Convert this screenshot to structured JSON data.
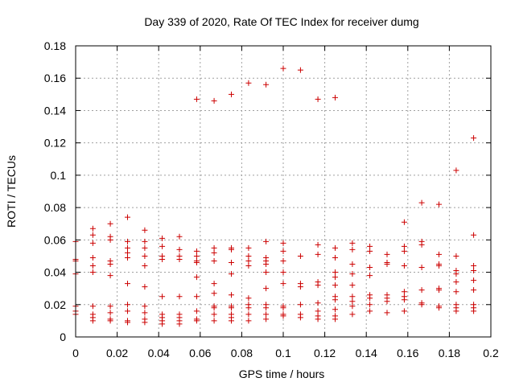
{
  "chart_data": {
    "type": "scatter",
    "title": "Day 339 of 2020, Rate Of TEC Index for receiver dumg",
    "xlabel": "GPS time / hours",
    "ylabel": "ROTI / TECUs",
    "xlim": [
      0,
      0.2
    ],
    "ylim": [
      0,
      0.18
    ],
    "xticks": [
      0,
      0.02,
      0.04,
      0.06,
      0.08,
      0.1,
      0.12,
      0.14,
      0.16,
      0.18,
      0.2
    ],
    "xtick_labels": [
      "0",
      "0.02",
      "0.04",
      "0.06",
      "0.08",
      "0.1",
      "0.12",
      "0.14",
      "0.16",
      "0.18",
      "0.2"
    ],
    "yticks": [
      0,
      0.02,
      0.04,
      0.06,
      0.08,
      0.1,
      0.12,
      0.14,
      0.16,
      0.18
    ],
    "ytick_labels": [
      "0",
      "0.02",
      "0.04",
      "0.06",
      "0.08",
      "0.1",
      "0.12",
      "0.14",
      "0.16",
      "0.18"
    ],
    "grid": true,
    "marker": "+",
    "color": "#cc0000",
    "series": [
      {
        "name": "ROTI",
        "points": [
          [
            0.0,
            0.059
          ],
          [
            0.0,
            0.048
          ],
          [
            0.0,
            0.047
          ],
          [
            0.0,
            0.039
          ],
          [
            0.0,
            0.019
          ],
          [
            0.0,
            0.016
          ],
          [
            0.0,
            0.014
          ],
          [
            0.0083,
            0.067
          ],
          [
            0.0083,
            0.063
          ],
          [
            0.0083,
            0.058
          ],
          [
            0.0083,
            0.049
          ],
          [
            0.0083,
            0.044
          ],
          [
            0.0083,
            0.04
          ],
          [
            0.0083,
            0.019
          ],
          [
            0.0083,
            0.014
          ],
          [
            0.0083,
            0.012
          ],
          [
            0.0083,
            0.01
          ],
          [
            0.0167,
            0.07
          ],
          [
            0.0167,
            0.062
          ],
          [
            0.0167,
            0.06
          ],
          [
            0.0167,
            0.047
          ],
          [
            0.0167,
            0.045
          ],
          [
            0.0167,
            0.038
          ],
          [
            0.0167,
            0.019
          ],
          [
            0.0167,
            0.015
          ],
          [
            0.0167,
            0.011
          ],
          [
            0.0167,
            0.01
          ],
          [
            0.025,
            0.074
          ],
          [
            0.025,
            0.059
          ],
          [
            0.025,
            0.055
          ],
          [
            0.025,
            0.052
          ],
          [
            0.025,
            0.049
          ],
          [
            0.025,
            0.033
          ],
          [
            0.025,
            0.02
          ],
          [
            0.025,
            0.016
          ],
          [
            0.025,
            0.01
          ],
          [
            0.025,
            0.009
          ],
          [
            0.0333,
            0.066
          ],
          [
            0.0333,
            0.059
          ],
          [
            0.0333,
            0.055
          ],
          [
            0.0333,
            0.05
          ],
          [
            0.0333,
            0.044
          ],
          [
            0.0333,
            0.031
          ],
          [
            0.0333,
            0.019
          ],
          [
            0.0333,
            0.015
          ],
          [
            0.0333,
            0.011
          ],
          [
            0.0333,
            0.009
          ],
          [
            0.0417,
            0.061
          ],
          [
            0.0417,
            0.056
          ],
          [
            0.0417,
            0.05
          ],
          [
            0.0417,
            0.048
          ],
          [
            0.0417,
            0.025
          ],
          [
            0.0417,
            0.014
          ],
          [
            0.0417,
            0.012
          ],
          [
            0.0417,
            0.01
          ],
          [
            0.0417,
            0.008
          ],
          [
            0.05,
            0.062
          ],
          [
            0.05,
            0.054
          ],
          [
            0.05,
            0.05
          ],
          [
            0.05,
            0.048
          ],
          [
            0.05,
            0.025
          ],
          [
            0.05,
            0.014
          ],
          [
            0.05,
            0.012
          ],
          [
            0.05,
            0.01
          ],
          [
            0.05,
            0.008
          ],
          [
            0.0583,
            0.147
          ],
          [
            0.0583,
            0.053
          ],
          [
            0.0583,
            0.05
          ],
          [
            0.0583,
            0.047
          ],
          [
            0.0583,
            0.046
          ],
          [
            0.0583,
            0.037
          ],
          [
            0.0583,
            0.025
          ],
          [
            0.0583,
            0.016
          ],
          [
            0.0583,
            0.011
          ],
          [
            0.0583,
            0.01
          ],
          [
            0.0667,
            0.146
          ],
          [
            0.0667,
            0.055
          ],
          [
            0.0667,
            0.052
          ],
          [
            0.0667,
            0.047
          ],
          [
            0.0667,
            0.033
          ],
          [
            0.0667,
            0.027
          ],
          [
            0.0667,
            0.019
          ],
          [
            0.0667,
            0.018
          ],
          [
            0.0667,
            0.014
          ],
          [
            0.0667,
            0.01
          ],
          [
            0.075,
            0.15
          ],
          [
            0.075,
            0.055
          ],
          [
            0.075,
            0.054
          ],
          [
            0.075,
            0.046
          ],
          [
            0.075,
            0.039
          ],
          [
            0.075,
            0.026
          ],
          [
            0.075,
            0.019
          ],
          [
            0.075,
            0.018
          ],
          [
            0.075,
            0.014
          ],
          [
            0.075,
            0.012
          ],
          [
            0.075,
            0.01
          ],
          [
            0.0833,
            0.157
          ],
          [
            0.0833,
            0.055
          ],
          [
            0.0833,
            0.05
          ],
          [
            0.0833,
            0.047
          ],
          [
            0.0833,
            0.044
          ],
          [
            0.0833,
            0.024
          ],
          [
            0.0833,
            0.02
          ],
          [
            0.0833,
            0.018
          ],
          [
            0.0833,
            0.014
          ],
          [
            0.0833,
            0.01
          ],
          [
            0.0917,
            0.156
          ],
          [
            0.0917,
            0.059
          ],
          [
            0.0917,
            0.049
          ],
          [
            0.0917,
            0.047
          ],
          [
            0.0917,
            0.045
          ],
          [
            0.0917,
            0.04
          ],
          [
            0.0917,
            0.03
          ],
          [
            0.0917,
            0.02
          ],
          [
            0.0917,
            0.018
          ],
          [
            0.0917,
            0.014
          ],
          [
            0.0917,
            0.011
          ],
          [
            0.1,
            0.166
          ],
          [
            0.1,
            0.058
          ],
          [
            0.1,
            0.053
          ],
          [
            0.1,
            0.047
          ],
          [
            0.1,
            0.04
          ],
          [
            0.1,
            0.033
          ],
          [
            0.1,
            0.019
          ],
          [
            0.1,
            0.018
          ],
          [
            0.1,
            0.014
          ],
          [
            0.1,
            0.013
          ],
          [
            0.1083,
            0.165
          ],
          [
            0.1083,
            0.05
          ],
          [
            0.1083,
            0.033
          ],
          [
            0.1083,
            0.031
          ],
          [
            0.1083,
            0.02
          ],
          [
            0.1083,
            0.014
          ],
          [
            0.1083,
            0.012
          ],
          [
            0.1167,
            0.147
          ],
          [
            0.1167,
            0.057
          ],
          [
            0.1167,
            0.051
          ],
          [
            0.1167,
            0.034
          ],
          [
            0.1167,
            0.032
          ],
          [
            0.1167,
            0.021
          ],
          [
            0.1167,
            0.016
          ],
          [
            0.1167,
            0.013
          ],
          [
            0.1167,
            0.011
          ],
          [
            0.125,
            0.148
          ],
          [
            0.125,
            0.055
          ],
          [
            0.125,
            0.049
          ],
          [
            0.125,
            0.04
          ],
          [
            0.125,
            0.037
          ],
          [
            0.125,
            0.032
          ],
          [
            0.125,
            0.025
          ],
          [
            0.125,
            0.023
          ],
          [
            0.125,
            0.017
          ],
          [
            0.125,
            0.013
          ],
          [
            0.125,
            0.011
          ],
          [
            0.1333,
            0.058
          ],
          [
            0.1333,
            0.054
          ],
          [
            0.1333,
            0.045
          ],
          [
            0.1333,
            0.039
          ],
          [
            0.1333,
            0.032
          ],
          [
            0.1333,
            0.025
          ],
          [
            0.1333,
            0.022
          ],
          [
            0.1333,
            0.019
          ],
          [
            0.1333,
            0.014
          ],
          [
            0.1417,
            0.056
          ],
          [
            0.1417,
            0.053
          ],
          [
            0.1417,
            0.043
          ],
          [
            0.1417,
            0.038
          ],
          [
            0.1417,
            0.026
          ],
          [
            0.1417,
            0.024
          ],
          [
            0.1417,
            0.02
          ],
          [
            0.1417,
            0.016
          ],
          [
            0.15,
            0.051
          ],
          [
            0.15,
            0.046
          ],
          [
            0.15,
            0.045
          ],
          [
            0.15,
            0.026
          ],
          [
            0.15,
            0.024
          ],
          [
            0.15,
            0.022
          ],
          [
            0.15,
            0.015
          ],
          [
            0.1583,
            0.071
          ],
          [
            0.1583,
            0.056
          ],
          [
            0.1583,
            0.053
          ],
          [
            0.1583,
            0.044
          ],
          [
            0.1583,
            0.028
          ],
          [
            0.1583,
            0.025
          ],
          [
            0.1583,
            0.023
          ],
          [
            0.1583,
            0.016
          ],
          [
            0.1667,
            0.083
          ],
          [
            0.1667,
            0.059
          ],
          [
            0.1667,
            0.057
          ],
          [
            0.1667,
            0.043
          ],
          [
            0.1667,
            0.029
          ],
          [
            0.1667,
            0.021
          ],
          [
            0.1667,
            0.02
          ],
          [
            0.175,
            0.082
          ],
          [
            0.175,
            0.051
          ],
          [
            0.175,
            0.045
          ],
          [
            0.175,
            0.044
          ],
          [
            0.175,
            0.03
          ],
          [
            0.175,
            0.029
          ],
          [
            0.175,
            0.019
          ],
          [
            0.175,
            0.018
          ],
          [
            0.1833,
            0.103
          ],
          [
            0.1833,
            0.05
          ],
          [
            0.1833,
            0.041
          ],
          [
            0.1833,
            0.039
          ],
          [
            0.1833,
            0.034
          ],
          [
            0.1833,
            0.028
          ],
          [
            0.1833,
            0.02
          ],
          [
            0.1833,
            0.018
          ],
          [
            0.1833,
            0.016
          ],
          [
            0.1917,
            0.123
          ],
          [
            0.1917,
            0.063
          ],
          [
            0.1917,
            0.044
          ],
          [
            0.1917,
            0.041
          ],
          [
            0.1917,
            0.035
          ],
          [
            0.1917,
            0.029
          ],
          [
            0.1917,
            0.02
          ],
          [
            0.1917,
            0.018
          ],
          [
            0.1917,
            0.016
          ]
        ]
      }
    ]
  }
}
